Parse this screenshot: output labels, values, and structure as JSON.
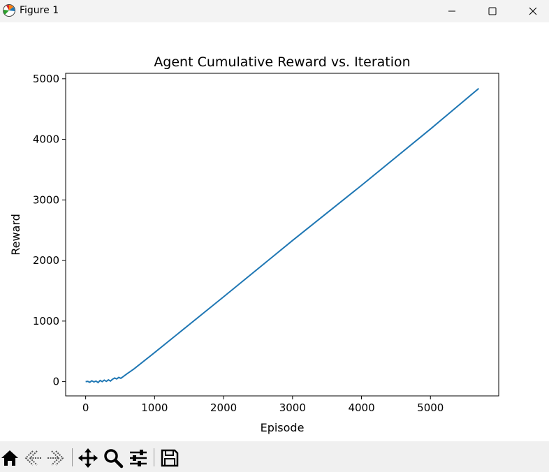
{
  "window": {
    "title": "Figure 1",
    "icon": "matplotlib-logo-icon",
    "controls": [
      "minimize-icon",
      "maximize-icon",
      "close-icon"
    ]
  },
  "toolbar": {
    "buttons": [
      "home-icon",
      "back-arrow-icon",
      "forward-arrow-icon",
      "pan-icon",
      "zoom-icon",
      "configure-subplots-icon",
      "save-icon"
    ]
  },
  "chart_data": {
    "type": "line",
    "title": "Agent Cumulative Reward vs. Iteration",
    "xlabel": "Episode",
    "ylabel": "Reward",
    "xlim": [
      -290,
      5990
    ],
    "ylim": [
      -235,
      5090
    ],
    "xticks": [
      0,
      1000,
      2000,
      3000,
      4000,
      5000
    ],
    "yticks": [
      0,
      1000,
      2000,
      3000,
      4000,
      5000
    ],
    "grid": false,
    "legend": "none",
    "line_color": "#1f77b4",
    "series": [
      {
        "x": [
          0,
          30,
          60,
          90,
          120,
          150,
          180,
          210,
          240,
          270,
          300,
          330,
          360,
          390,
          420,
          450,
          480,
          510,
          540,
          600,
          700,
          1000,
          2000,
          3000,
          4000,
          5000,
          5700
        ],
        "y": [
          0,
          5,
          -10,
          15,
          -5,
          10,
          -15,
          20,
          0,
          25,
          5,
          30,
          10,
          40,
          60,
          45,
          70,
          55,
          80,
          130,
          210,
          480,
          1400,
          2330,
          3240,
          4170,
          4840
        ]
      }
    ]
  }
}
